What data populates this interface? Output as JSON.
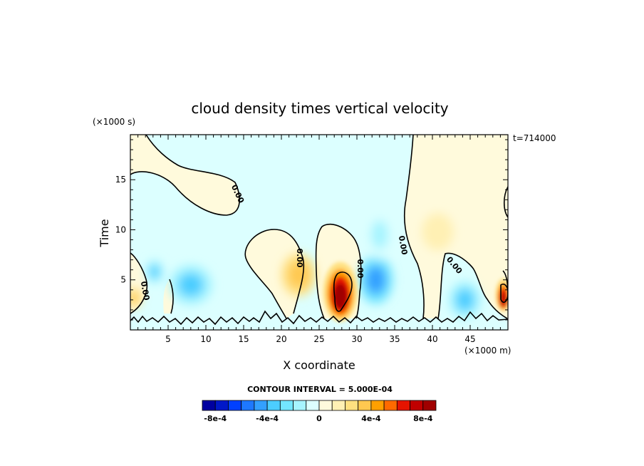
{
  "chart_data": {
    "type": "heatmap",
    "title": "cloud density times vertical velocity",
    "xlabel": "X coordinate",
    "ylabel": "Time",
    "x_unit": "(×1000 m)",
    "y_unit": "(×1000 s)",
    "timestamp": "t=714000",
    "xlim": [
      0,
      50
    ],
    "ylim": [
      0,
      19.5
    ],
    "xticks": [
      5,
      10,
      15,
      20,
      25,
      30,
      35,
      40,
      45
    ],
    "yticks": [
      5,
      10,
      15
    ],
    "contour_interval_text": "CONTOUR INTERVAL = 5.000E-04",
    "contour_label": "0.00",
    "colorbar": {
      "colors": [
        "#0000a0",
        "#0018c8",
        "#0040ff",
        "#1e78ff",
        "#33a0ff",
        "#4ccdff",
        "#73e6ff",
        "#a6f4ff",
        "#dcffff",
        "#fffadc",
        "#fff0b4",
        "#ffe080",
        "#ffc850",
        "#ffa000",
        "#ff6a00",
        "#e61400",
        "#c00000",
        "#a00000"
      ],
      "tick_labels": [
        "-8e-4",
        "-4e-4",
        "0",
        "4e-4",
        "8e-4"
      ],
      "tick_values": [
        -0.0008,
        -0.0004,
        0,
        0.0004,
        0.0008
      ],
      "range": [
        -0.0009,
        0.0009
      ]
    },
    "features": [
      {
        "kind": "positive",
        "x": 27.8,
        "y": 3.8,
        "value": 0.0008
      },
      {
        "kind": "positive",
        "x": 49.4,
        "y": 3.5,
        "value": 0.0007
      },
      {
        "kind": "positive",
        "x": 0.5,
        "y": 3.2,
        "value": 0.0002
      },
      {
        "kind": "positive",
        "x": 22.3,
        "y": 5.5,
        "value": 0.0002
      },
      {
        "kind": "positive",
        "x": 40.7,
        "y": 9.8,
        "value": 0.0001
      },
      {
        "kind": "negative",
        "x": 32.5,
        "y": 5.0,
        "value": -0.0003
      },
      {
        "kind": "negative",
        "x": 8.0,
        "y": 4.5,
        "value": -0.0002
      },
      {
        "kind": "negative",
        "x": 44.3,
        "y": 3.0,
        "value": -0.0002
      },
      {
        "kind": "negative",
        "x": 3.2,
        "y": 5.8,
        "value": -0.0002
      },
      {
        "kind": "negative",
        "x": 33.0,
        "y": 9.5,
        "value": -0.0001
      }
    ]
  }
}
